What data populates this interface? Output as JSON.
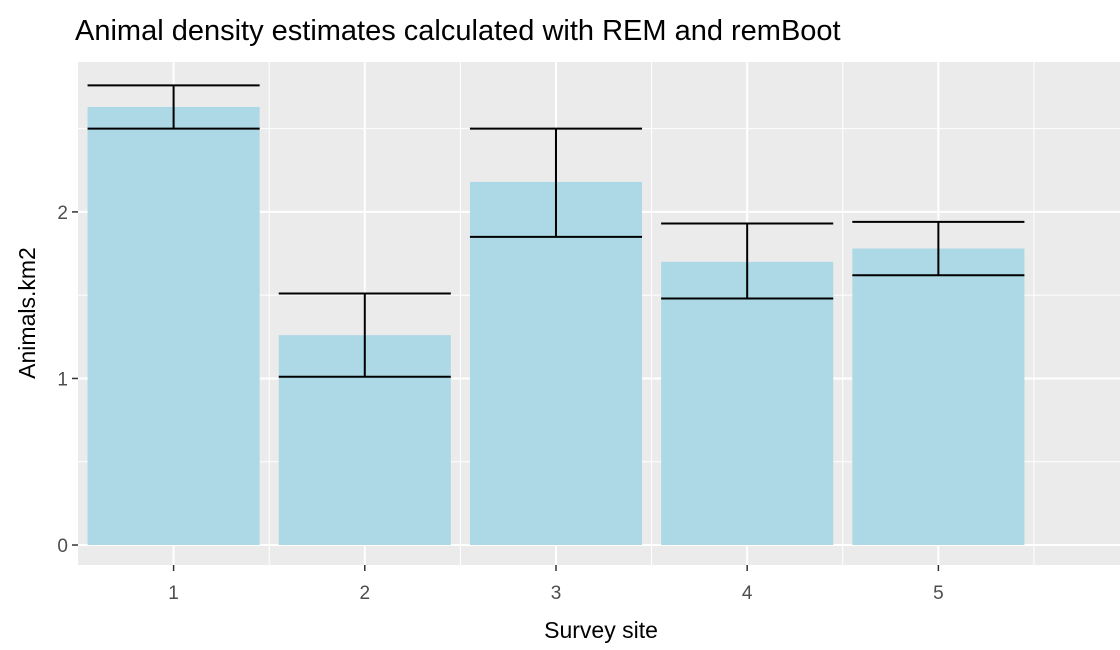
{
  "chart_data": {
    "type": "bar",
    "title": "Animal density estimates calculated with REM and remBoot",
    "xlabel": "Survey site",
    "ylabel": "Animals.km2",
    "categories": [
      "1",
      "2",
      "3",
      "4",
      "5"
    ],
    "values": [
      2.63,
      1.26,
      2.18,
      1.7,
      1.78
    ],
    "error_low": [
      2.5,
      1.01,
      1.85,
      1.48,
      1.62
    ],
    "error_high": [
      2.76,
      1.51,
      2.5,
      1.93,
      1.94
    ],
    "ylim": [
      -0.12,
      2.9
    ],
    "yticks": [
      0,
      1,
      2
    ],
    "ytick_labels": [
      "0",
      "1",
      "2"
    ],
    "grid": true,
    "legend": "none",
    "colors": {
      "bar": "#add8e6",
      "panel": "#ebebeb",
      "grid": "#ffffff",
      "errorbar": "#000000"
    }
  }
}
